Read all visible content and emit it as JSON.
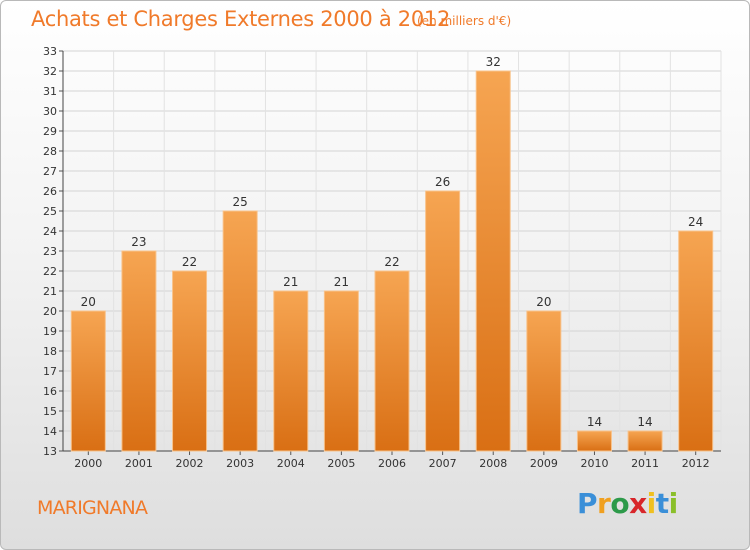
{
  "title": "Achats et Charges Externes 2000 à 2012",
  "subtitle": "(en milliers d'€)",
  "commune": "MARIGNANA",
  "logo": {
    "text": "Proxiti",
    "colors": [
      "#3a8fd8",
      "#f0a020",
      "#2d9a4a",
      "#d8262a",
      "#f0c020",
      "#3a8fd8",
      "#8abf2a"
    ]
  },
  "colors": {
    "bar_top": "#f6a552",
    "bar_bottom": "#d96f14",
    "accent": "#f07a2a"
  },
  "chart_data": {
    "type": "bar",
    "categories": [
      "2000",
      "2001",
      "2002",
      "2003",
      "2004",
      "2005",
      "2006",
      "2007",
      "2008",
      "2009",
      "2010",
      "2011",
      "2012"
    ],
    "values": [
      20,
      23,
      22,
      25,
      21,
      21,
      22,
      26,
      32,
      20,
      14,
      14,
      24
    ],
    "ylim": [
      13,
      33
    ],
    "yticks": [
      13,
      14,
      15,
      16,
      17,
      18,
      19,
      20,
      21,
      22,
      23,
      24,
      25,
      26,
      27,
      28,
      29,
      30,
      31,
      32,
      33
    ],
    "grid": true,
    "data_labels": true
  }
}
